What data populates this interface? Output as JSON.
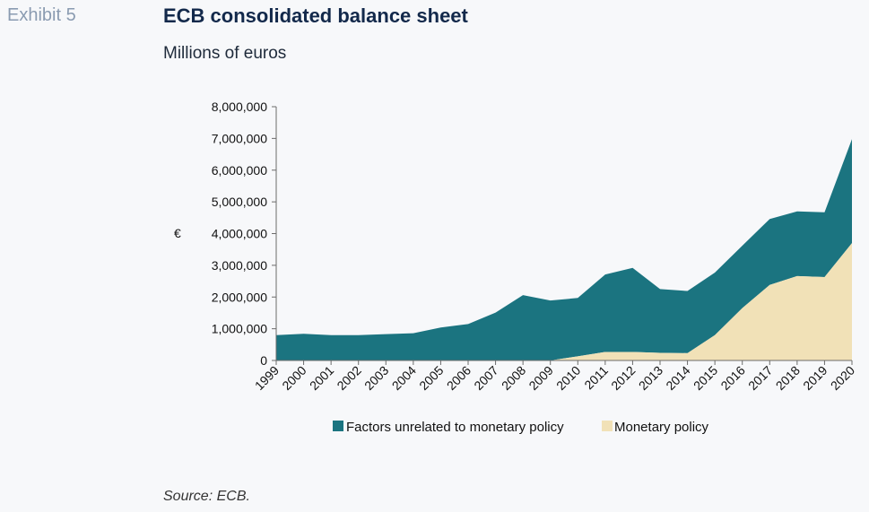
{
  "header": {
    "exhibit": "Exhibit 5",
    "title": "ECB consolidated balance sheet",
    "subtitle": "Millions of euros"
  },
  "footer": {
    "source": "Source: ECB."
  },
  "colors": {
    "factors": "#1b7480",
    "monetary": "#f1e1b7",
    "axis": "#6b6b6b"
  },
  "chart_data": {
    "type": "area",
    "stacked": true,
    "ylabel": "€",
    "ylim": [
      0,
      8000000
    ],
    "yticks": [
      0,
      1000000,
      2000000,
      3000000,
      4000000,
      5000000,
      6000000,
      7000000,
      8000000
    ],
    "ytick_labels": [
      "0",
      "1,000,000",
      "2,000,000",
      "3,000,000",
      "4,000,000",
      "5,000,000",
      "6,000,000",
      "7,000,000",
      "8,000,000"
    ],
    "categories": [
      "1999",
      "2000",
      "2001",
      "2002",
      "2003",
      "2004",
      "2005",
      "2006",
      "2007",
      "2008",
      "2009",
      "2010",
      "2011",
      "2012",
      "2013",
      "2014",
      "2015",
      "2016",
      "2017",
      "2018",
      "2019",
      "2020"
    ],
    "series": [
      {
        "name": "Monetary policy",
        "values": [
          0,
          0,
          0,
          0,
          0,
          0,
          0,
          0,
          0,
          0,
          0,
          130000,
          270000,
          270000,
          240000,
          230000,
          800000,
          1650000,
          2380000,
          2660000,
          2630000,
          3700000
        ]
      },
      {
        "name": "Factors unrelated to monetary policy",
        "values": [
          800000,
          840000,
          800000,
          800000,
          830000,
          860000,
          1040000,
          1150000,
          1510000,
          2060000,
          1890000,
          1840000,
          2440000,
          2650000,
          2010000,
          1960000,
          1970000,
          1970000,
          2080000,
          2040000,
          2040000,
          3280000
        ]
      }
    ],
    "legend": {
      "position": "bottom",
      "entries": [
        "Factors unrelated to monetary policy",
        "Monetary policy"
      ]
    },
    "grid": false
  }
}
